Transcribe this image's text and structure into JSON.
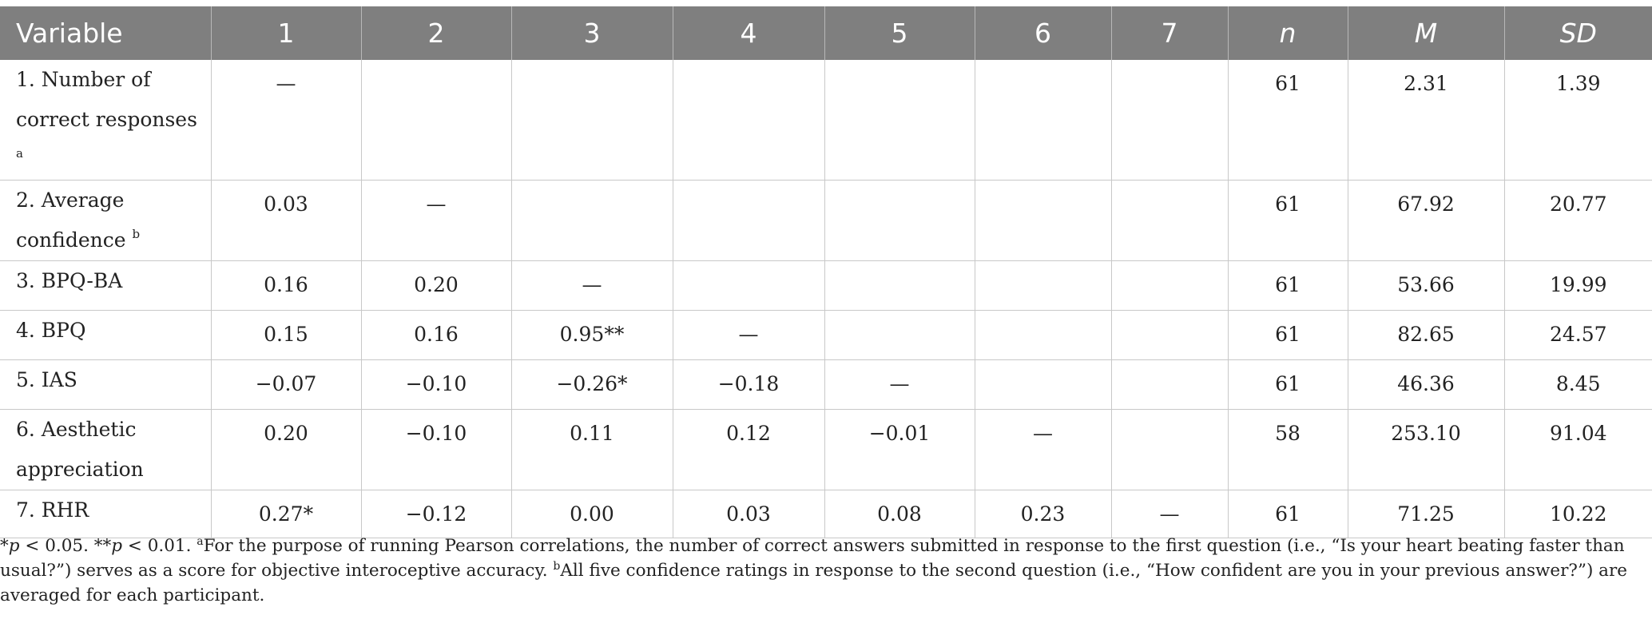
{
  "table": {
    "headers": [
      "Variable",
      "1",
      "2",
      "3",
      "4",
      "5",
      "6",
      "7",
      "n",
      "M",
      "SD"
    ],
    "rows": [
      {
        "label_line1": "1. Number of",
        "label_line2": "correct responses",
        "sup": "a",
        "cells": [
          "—",
          "",
          "",
          "",
          "",
          "",
          "",
          "61",
          "2.31",
          "1.39"
        ]
      },
      {
        "label_line1": "2. Average",
        "label_line2": "confidence",
        "sup": "b",
        "cells": [
          "0.03",
          "—",
          "",
          "",
          "",
          "",
          "",
          "61",
          "67.92",
          "20.77"
        ]
      },
      {
        "label_line1": "3. BPQ-BA",
        "cells": [
          "0.16",
          "0.20",
          "—",
          "",
          "",
          "",
          "",
          "61",
          "53.66",
          "19.99"
        ]
      },
      {
        "label_line1": "4. BPQ",
        "cells": [
          "0.15",
          "0.16",
          "0.95**",
          "—",
          "",
          "",
          "",
          "61",
          "82.65",
          "24.57"
        ]
      },
      {
        "label_line1": "5. IAS",
        "cells": [
          "−0.07",
          "−0.10",
          "−0.26*",
          "−0.18",
          "—",
          "",
          "",
          "61",
          "46.36",
          "8.45"
        ]
      },
      {
        "label_line1": "6. Aesthetic",
        "label_line2": "appreciation",
        "cells": [
          "0.20",
          "−0.10",
          "0.11",
          "0.12",
          "−0.01",
          "—",
          "",
          "58",
          "253.10",
          "91.04"
        ]
      },
      {
        "label_line1": "7. RHR",
        "cells": [
          "0.27*",
          "−0.12",
          "0.00",
          "0.03",
          "0.08",
          "0.23",
          "—",
          "61",
          "71.25",
          "10.22"
        ]
      }
    ]
  },
  "note": {
    "p1_sym": "*",
    "p1_var": "p",
    "p1_val": " < 0.05. **",
    "p2_var": "p",
    "p2_val": " < 0.01. ",
    "sup_a": "a",
    "text_a": "For the purpose of running Pearson correlations, the number of correct answers submitted in response to the first question (i.e., “Is your heart beating faster than usual?”) serves as a score for objective interoceptive accuracy. ",
    "sup_b": "b",
    "text_b": "All five confidence ratings in response to the second question (i.e., “How confident are you in your previous answer?”) are averaged for each participant."
  }
}
